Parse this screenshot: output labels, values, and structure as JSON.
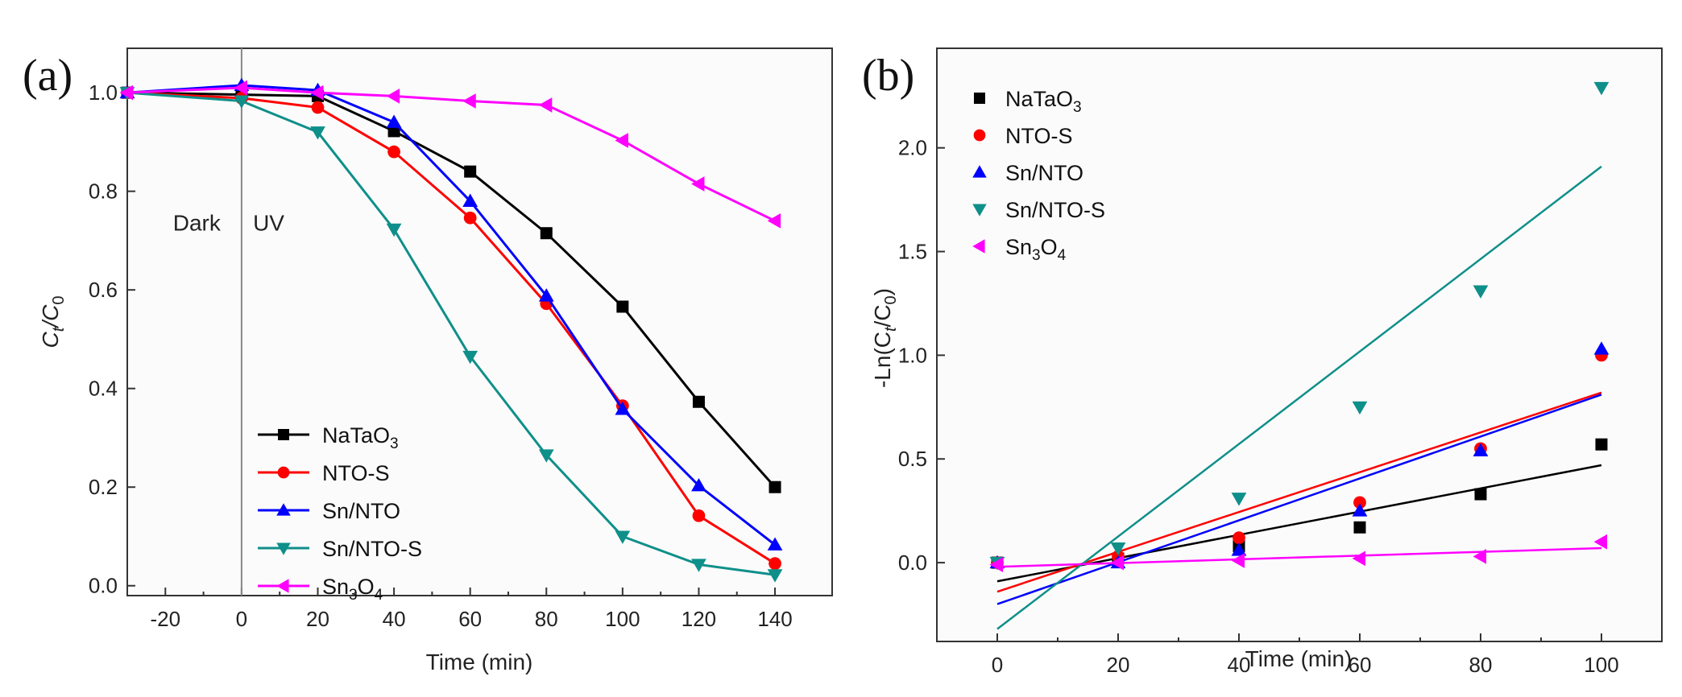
{
  "chart_data": [
    {
      "panel_label": "(a)",
      "type": "line",
      "xlabel": "Time (min)",
      "ylabel": {
        "pre": "C",
        "sub1": "t",
        "mid": "/C",
        "sub2": "0"
      },
      "xlim": [
        -30,
        155
      ],
      "ylim": [
        -0.02,
        1.09
      ],
      "xticks": [
        -20,
        0,
        20,
        40,
        60,
        80,
        100,
        120,
        140
      ],
      "yticks": [
        0.0,
        0.2,
        0.4,
        0.6,
        0.8,
        1.0
      ],
      "ytick_labels": [
        "0.0",
        "0.2",
        "0.4",
        "0.6",
        "0.8",
        "1.0"
      ],
      "annotations": [
        {
          "text": "Dark",
          "x": -18,
          "y": 0.72
        },
        {
          "text": "UV",
          "x": 3,
          "y": 0.72
        }
      ],
      "divider_x": 0,
      "legend": {
        "placement": "bottom-center"
      },
      "series": [
        {
          "name": "NaTaO3",
          "base": "NaTaO",
          "sub": "3",
          "color": "#000000",
          "marker": "square",
          "x": [
            -30,
            0,
            20,
            40,
            60,
            80,
            100,
            120,
            140
          ],
          "y": [
            1.0,
            0.996,
            0.993,
            0.922,
            0.84,
            0.715,
            0.566,
            0.373,
            0.2
          ]
        },
        {
          "name": "NTO-S",
          "base": "NTO-S",
          "sub": "",
          "color": "#ff0000",
          "marker": "circle",
          "x": [
            -30,
            0,
            20,
            40,
            60,
            80,
            100,
            120,
            140
          ],
          "y": [
            1.0,
            0.989,
            0.97,
            0.88,
            0.746,
            0.572,
            0.365,
            0.142,
            0.045
          ]
        },
        {
          "name": "Sn/NTO",
          "base": "Sn/NTO",
          "sub": "",
          "color": "#0000ff",
          "marker": "triangle-up",
          "x": [
            -30,
            0,
            20,
            40,
            60,
            80,
            100,
            120,
            140
          ],
          "y": [
            1.0,
            1.015,
            1.005,
            0.94,
            0.78,
            0.588,
            0.358,
            0.203,
            0.083
          ]
        },
        {
          "name": "Sn/NTO-S",
          "base": "Sn/NTO-S",
          "sub": "",
          "color": "#0f8f8a",
          "marker": "triangle-down",
          "x": [
            -30,
            0,
            20,
            40,
            60,
            80,
            100,
            120,
            140
          ],
          "y": [
            1.0,
            0.983,
            0.92,
            0.723,
            0.465,
            0.265,
            0.1,
            0.043,
            0.022
          ]
        },
        {
          "name": "Sn3O4",
          "base": "Sn",
          "mid": "3",
          "tail": "O",
          "sub": "4",
          "color": "#ff00ff",
          "marker": "triangle-left",
          "x": [
            -30,
            0,
            20,
            40,
            60,
            80,
            100,
            120,
            140
          ],
          "y": [
            1.0,
            1.01,
            1.0,
            0.993,
            0.983,
            0.975,
            0.903,
            0.815,
            0.74
          ]
        }
      ]
    },
    {
      "panel_label": "(b)",
      "type": "scatter",
      "xlabel": "Time (min)",
      "ylabel": {
        "pre": "-Ln(C",
        "sub1": "t",
        "mid": "/C",
        "sub2": "0",
        "post": ")"
      },
      "xlim": [
        -10,
        110
      ],
      "ylim": [
        -0.38,
        2.48
      ],
      "xticks": [
        0,
        20,
        40,
        60,
        80,
        100
      ],
      "yticks": [
        0.0,
        0.5,
        1.0,
        1.5,
        2.0
      ],
      "ytick_labels": [
        "0.0",
        "0.5",
        "1.0",
        "1.5",
        "2.0"
      ],
      "legend": {
        "placement": "top-left"
      },
      "series": [
        {
          "name": "NaTaO3",
          "base": "NaTaO",
          "sub": "3",
          "color": "#000000",
          "marker": "square",
          "x": [
            0,
            20,
            40,
            60,
            80,
            100
          ],
          "y": [
            0.0,
            0.02,
            0.08,
            0.17,
            0.33,
            0.57
          ],
          "fit": {
            "x": [
              0,
              100
            ],
            "y": [
              -0.09,
              0.47
            ]
          }
        },
        {
          "name": "NTO-S",
          "base": "NTO-S",
          "sub": "",
          "color": "#ff0000",
          "marker": "circle",
          "x": [
            0,
            20,
            40,
            60,
            80,
            100
          ],
          "y": [
            0.0,
            0.03,
            0.12,
            0.29,
            0.55,
            1.0
          ],
          "fit": {
            "x": [
              0,
              100
            ],
            "y": [
              -0.14,
              0.82
            ]
          }
        },
        {
          "name": "Sn/NTO",
          "base": "Sn/NTO",
          "sub": "",
          "color": "#0000ff",
          "marker": "triangle-up",
          "x": [
            0,
            20,
            40,
            60,
            80,
            100
          ],
          "y": [
            0.0,
            0.0,
            0.06,
            0.25,
            0.54,
            1.03
          ],
          "fit": {
            "x": [
              0,
              100
            ],
            "y": [
              -0.2,
              0.81
            ]
          }
        },
        {
          "name": "Sn/NTO-S",
          "base": "Sn/NTO-S",
          "sub": "",
          "color": "#0f8f8a",
          "marker": "triangle-down",
          "x": [
            0,
            20,
            40,
            60,
            80,
            100
          ],
          "y": [
            0.0,
            0.07,
            0.31,
            0.75,
            1.31,
            2.29
          ],
          "fit": {
            "x": [
              0,
              100
            ],
            "y": [
              -0.32,
              1.91
            ]
          }
        },
        {
          "name": "Sn3O4",
          "base": "Sn",
          "mid": "3",
          "tail": "O",
          "sub": "4",
          "color": "#ff00ff",
          "marker": "triangle-left",
          "x": [
            0,
            20,
            40,
            60,
            80,
            100
          ],
          "y": [
            -0.01,
            0.0,
            0.01,
            0.02,
            0.03,
            0.1
          ],
          "fit": {
            "x": [
              0,
              100
            ],
            "y": [
              -0.02,
              0.07
            ]
          }
        }
      ]
    }
  ]
}
